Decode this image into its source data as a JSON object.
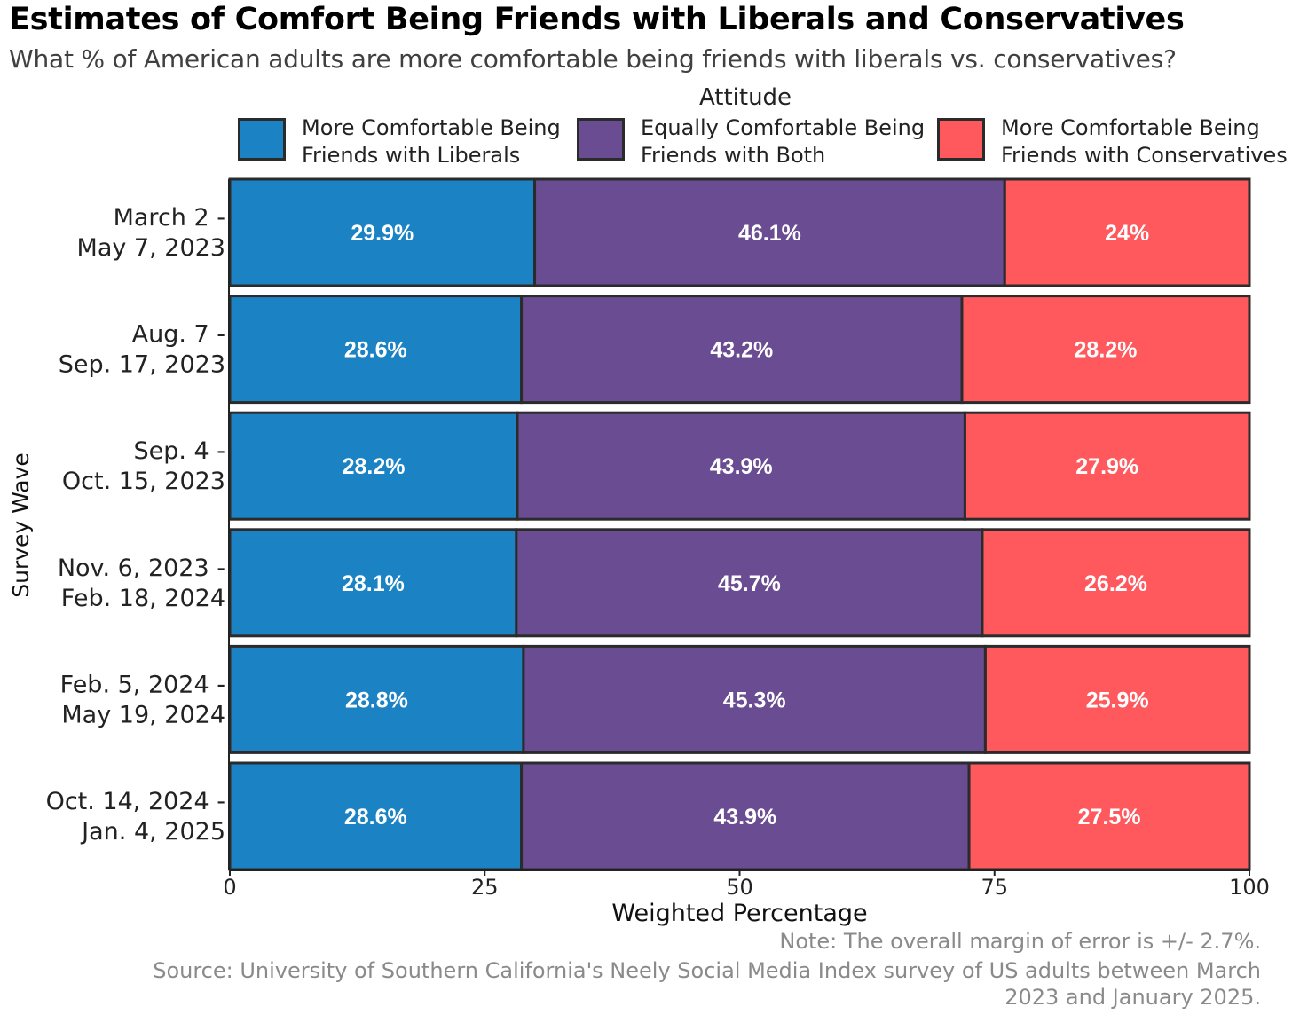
{
  "title": "Estimates of Comfort Being Friends with Liberals and Conservatives",
  "subtitle": "What % of American adults are more comfortable being friends with liberals vs. conservatives?",
  "legend": {
    "title": "Attitude",
    "items": [
      {
        "label": "More Comfortable Being\nFriends with Liberals",
        "color": "#1b82c4"
      },
      {
        "label": "Equally Comfortable Being\nFriends with Both",
        "color": "#6a4c93"
      },
      {
        "label": "More Comfortable Being\nFriends with Conservatives",
        "color": "#ff595e"
      }
    ]
  },
  "notes": {
    "margin": "Note: The overall margin of error is +/- 2.7%.",
    "source_line1": "Source: University of Southern California's Neely Social Media Index survey of US adults between March",
    "source_line2": "2023 and January 2025."
  },
  "chart_data": {
    "type": "bar",
    "orientation": "horizontal",
    "stacked": true,
    "xlabel": "Weighted Percentage",
    "ylabel": "Survey Wave",
    "xlim": [
      0,
      100
    ],
    "xticks": [
      "0",
      "25",
      "50",
      "75",
      "100"
    ],
    "categories": [
      [
        "March 2 -",
        "May 7, 2023"
      ],
      [
        "Aug. 7 -",
        "Sep. 17, 2023"
      ],
      [
        "Sep. 4 -",
        "Oct. 15, 2023"
      ],
      [
        "Nov. 6, 2023 -",
        "Feb. 18, 2024"
      ],
      [
        "Feb. 5, 2024 -",
        "May 19, 2024"
      ],
      [
        "Oct. 14, 2024 -",
        "Jan. 4, 2025"
      ]
    ],
    "series": [
      {
        "name": "More Comfortable Being Friends with Liberals",
        "color": "#1b82c4",
        "values": [
          29.9,
          28.6,
          28.2,
          28.1,
          28.8,
          28.6
        ],
        "labels": [
          "29.9%",
          "28.6%",
          "28.2%",
          "28.1%",
          "28.8%",
          "28.6%"
        ]
      },
      {
        "name": "Equally Comfortable Being Friends with Both",
        "color": "#6a4c93",
        "values": [
          46.1,
          43.2,
          43.9,
          45.7,
          45.3,
          43.9
        ],
        "labels": [
          "46.1%",
          "43.2%",
          "43.9%",
          "45.7%",
          "45.3%",
          "43.9%"
        ]
      },
      {
        "name": "More Comfortable Being Friends with Conservatives",
        "color": "#ff595e",
        "values": [
          24,
          28.2,
          27.9,
          26.2,
          25.9,
          27.5
        ],
        "labels": [
          "24%",
          "28.2%",
          "27.9%",
          "26.2%",
          "25.9%",
          "27.5%"
        ]
      }
    ],
    "legend_position": "top",
    "grid": false
  }
}
